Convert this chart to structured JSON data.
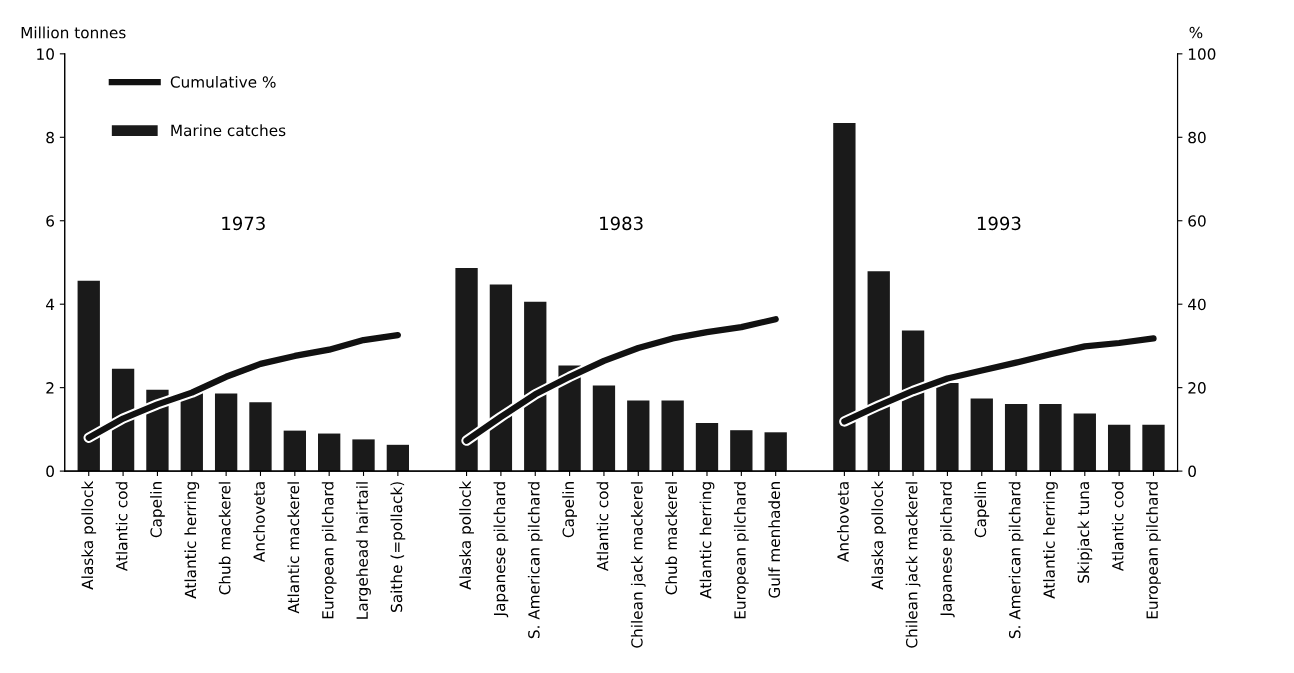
{
  "chart_data": {
    "type": "bar",
    "ylabel": "Million tonnes",
    "y2label": "%",
    "categories": [
      "Alaska pollock",
      "Atlantic cod",
      "Capelin",
      "Atlantic herring",
      "Chub mackerel",
      "Anchoveta",
      "Atlantic mackerel",
      "European pilchard",
      "Largehead hairtail",
      "Saithe (=pollack)",
      null,
      "Alaska pollock",
      "Japanese pilchard",
      "S. American pilchard",
      "Capelin",
      "Atlantic cod",
      "Chilean jack mackerel",
      "Chub mackerel",
      "Atlantic herring",
      "European pilchard",
      "Gulf menhaden",
      null,
      "Anchoveta",
      "Alaska pollock",
      "Chilean jack mackerel",
      "Japanese pilchard",
      "Capelin",
      "S. American pilchard",
      "Atlantic herring",
      "Skipjack tuna",
      "Atlantic cod",
      "European pilchard"
    ],
    "series": [
      {
        "name": "Marine catches",
        "color": "#1a1a1a",
        "values": [
          4.56,
          2.45,
          1.95,
          1.92,
          1.86,
          1.65,
          0.97,
          0.9,
          0.76,
          0.63,
          null,
          4.87,
          4.47,
          4.06,
          2.53,
          2.05,
          1.69,
          1.69,
          1.15,
          0.98,
          0.93,
          null,
          8.34,
          4.79,
          3.37,
          2.11,
          1.74,
          1.61,
          1.61,
          1.38,
          1.11,
          1.11
        ]
      },
      {
        "name": "Cumulative %",
        "type": "line",
        "axis": "y2",
        "color": "#111111",
        "values": [
          8,
          12.6,
          16,
          18.8,
          22.6,
          25.7,
          27.6,
          29.1,
          31.4,
          32.6,
          null,
          7.3,
          13,
          18.4,
          22.6,
          26.4,
          29.5,
          31.8,
          33.3,
          34.5,
          36.4,
          null,
          11.9,
          15.7,
          19.2,
          22.2,
          24.1,
          26,
          28,
          29.9,
          30.7,
          31.8
        ]
      }
    ],
    "annotations": [
      "1973",
      "1983",
      "1993"
    ],
    "ylim": [
      0,
      10
    ],
    "yticks": [
      0,
      2,
      4,
      6,
      8,
      10
    ],
    "y2lim": [
      0,
      100
    ],
    "y2ticks": [
      0,
      20,
      40,
      60,
      80,
      100
    ],
    "grid": false,
    "legend": "top left"
  }
}
